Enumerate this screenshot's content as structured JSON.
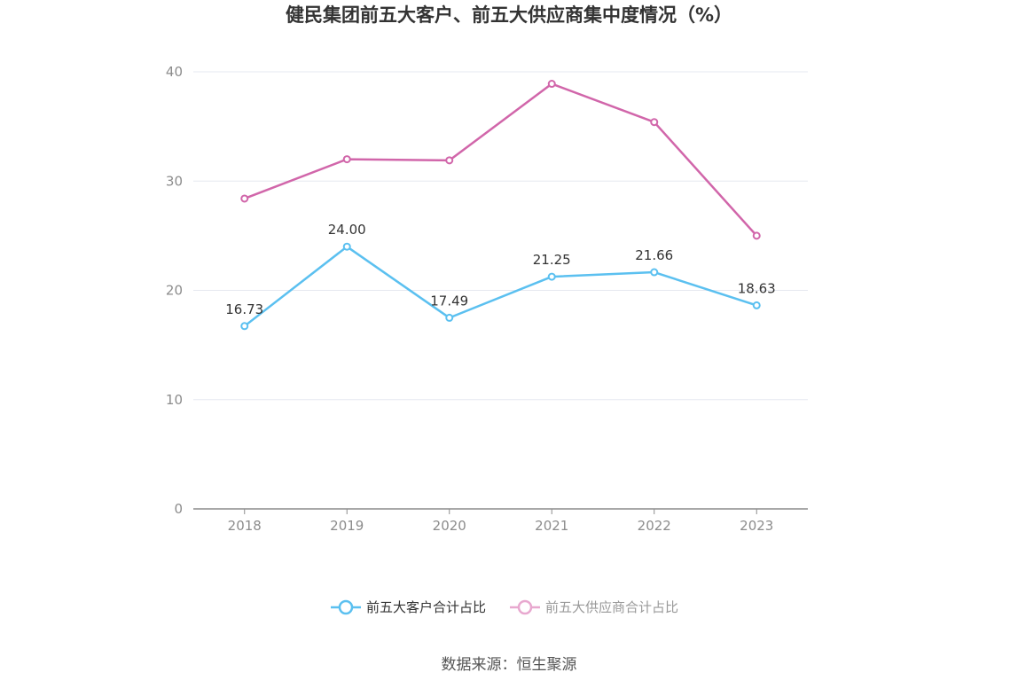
{
  "chart_data": {
    "type": "line",
    "title": "健民集团前五大客户、前五大供应商集中度情况（%）",
    "categories": [
      "2018",
      "2019",
      "2020",
      "2021",
      "2022",
      "2023"
    ],
    "ylim": [
      0,
      40
    ],
    "yticks": [
      "0",
      "10",
      "20",
      "30",
      "40"
    ],
    "grid": true,
    "legend_position": "bottom-center",
    "series": [
      {
        "name": "前五大客户合计占比",
        "color": "#5bc0f0",
        "values": [
          16.73,
          24.0,
          17.49,
          21.25,
          21.66,
          18.63
        ],
        "labels": [
          "16.73",
          "24.00",
          "17.49",
          "21.25",
          "21.66",
          "18.63"
        ],
        "legend_active": true
      },
      {
        "name": "前五大供应商合计占比",
        "color": "#d166aa",
        "values": [
          28.4,
          32.0,
          31.9,
          38.9,
          35.4,
          25.0
        ],
        "labels": [],
        "legend_active": false
      }
    ],
    "source": "数据来源：恒生聚源"
  },
  "colors": {
    "grid": "#e6e8f0",
    "axis": "#8c8c8c",
    "legend_inactive_line": "#e8a8cf",
    "legend_inactive_text": "#999999",
    "legend_active_text": "#333333"
  }
}
